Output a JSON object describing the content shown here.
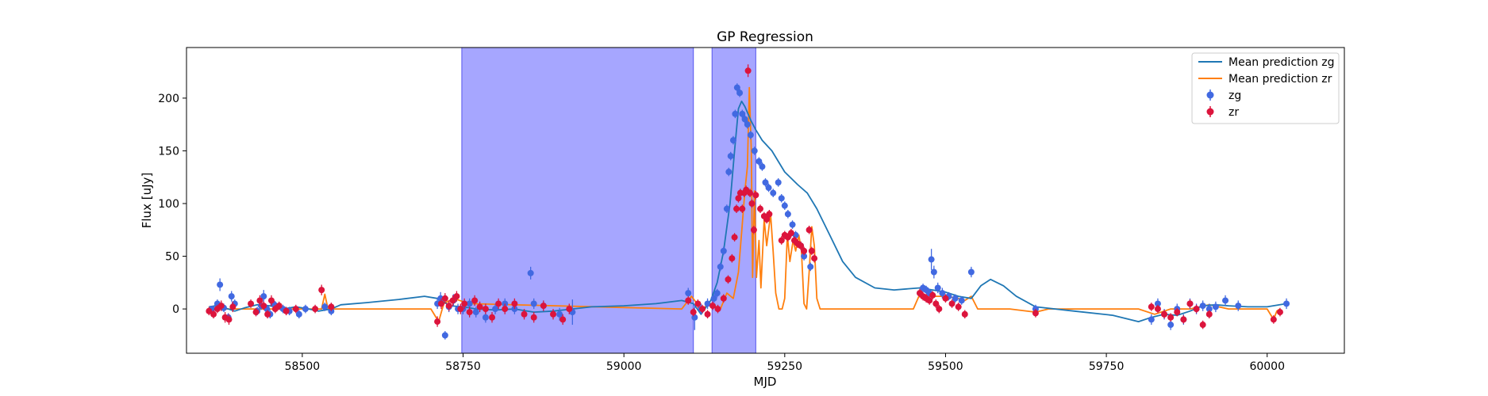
{
  "chart_data": {
    "type": "scatter",
    "title": "GP Regression",
    "xlabel": "MJD",
    "ylabel": "Flux [uJy]",
    "xlim": [
      58320,
      60120
    ],
    "ylim": [
      -42,
      248
    ],
    "xticks": [
      58500,
      58750,
      59000,
      59250,
      59500,
      59750,
      60000
    ],
    "yticks": [
      0,
      50,
      100,
      150,
      200
    ],
    "grid": false,
    "legend_position": "top-right",
    "shaded_spans": [
      {
        "x0": 58748,
        "x1": 59108,
        "color": "#a6a6ff"
      },
      {
        "x0": 59137,
        "x1": 59205,
        "color": "#a6a6ff"
      }
    ],
    "lines": [
      {
        "name": "Mean prediction zg",
        "color": "#1f77b4",
        "x": [
          58355,
          58365,
          58380,
          58395,
          58410,
          58430,
          58450,
          58470,
          58490,
          58510,
          58525,
          58545,
          58560,
          58600,
          58650,
          58690,
          58710,
          58730,
          58750,
          58770,
          58800,
          58830,
          58860,
          58890,
          58920,
          58950,
          59000,
          59050,
          59090,
          59108,
          59120,
          59135,
          59145,
          59155,
          59165,
          59172,
          59178,
          59183,
          59188,
          59193,
          59198,
          59205,
          59215,
          59230,
          59250,
          59270,
          59285,
          59300,
          59320,
          59340,
          59360,
          59390,
          59420,
          59460,
          59480,
          59500,
          59520,
          59540,
          59555,
          59570,
          59590,
          59610,
          59640,
          59700,
          59760,
          59800,
          59820,
          59840,
          59860,
          59880,
          59900,
          59920,
          59940,
          59970,
          60000,
          60030
        ],
        "y": [
          2,
          3,
          1,
          -2,
          1,
          4,
          3,
          0,
          2,
          0,
          -2,
          0,
          4,
          6,
          9,
          12,
          10,
          3,
          2,
          0,
          -1,
          0,
          -3,
          -2,
          0,
          2,
          3,
          5,
          8,
          5,
          -5,
          8,
          25,
          55,
          100,
          150,
          190,
          197,
          192,
          185,
          178,
          170,
          160,
          150,
          130,
          118,
          110,
          95,
          70,
          45,
          30,
          20,
          18,
          20,
          18,
          16,
          12,
          10,
          22,
          28,
          22,
          12,
          2,
          -2,
          -6,
          -12,
          -8,
          -5,
          -6,
          -2,
          3,
          4,
          3,
          2,
          2,
          5
        ]
      },
      {
        "name": "Mean prediction zr",
        "color": "#ff7f0e",
        "x": [
          58355,
          58380,
          58500,
          58530,
          58535,
          58540,
          58560,
          58700,
          58712,
          58720,
          58735,
          58760,
          59090,
          59105,
          59120,
          59135,
          59150,
          59160,
          59170,
          59178,
          59184,
          59188,
          59192,
          59195,
          59198,
          59200,
          59203,
          59206,
          59210,
          59213,
          59218,
          59222,
          59228,
          59232,
          59236,
          59241,
          59246,
          59250,
          59254,
          59258,
          59263,
          59267,
          59272,
          59276,
          59280,
          59284,
          59288,
          59292,
          59296,
          59300,
          59305,
          59310,
          59450,
          59460,
          59470,
          59480,
          59490,
          59500,
          59510,
          59520,
          59530,
          59540,
          59550,
          59600,
          59640,
          59660,
          59800,
          59825,
          59850,
          59880,
          59910,
          59940,
          60000,
          60010,
          60015,
          60020
        ],
        "y": [
          0,
          0,
          0,
          0,
          14,
          0,
          0,
          0,
          -12,
          5,
          10,
          5,
          0,
          12,
          0,
          5,
          0,
          15,
          10,
          35,
          80,
          112,
          135,
          210,
          150,
          30,
          112,
          30,
          65,
          20,
          85,
          60,
          90,
          55,
          15,
          0,
          0,
          10,
          70,
          45,
          65,
          55,
          70,
          55,
          5,
          0,
          35,
          78,
          60,
          10,
          0,
          0,
          0,
          14,
          13,
          12,
          12,
          12,
          11,
          10,
          8,
          12,
          0,
          0,
          -3,
          0,
          0,
          -5,
          0,
          0,
          4,
          0,
          0,
          -10,
          -2,
          0
        ]
      }
    ],
    "series": [
      {
        "name": "zg",
        "color": "#4169e1",
        "x": [
          58360,
          58368,
          58372,
          58378,
          58385,
          58390,
          58395,
          58430,
          58436,
          58440,
          58445,
          58450,
          58455,
          58460,
          58470,
          58480,
          58495,
          58505,
          58535,
          58545,
          58710,
          58715,
          58722,
          58728,
          58735,
          58742,
          58750,
          58760,
          58770,
          58785,
          58800,
          58815,
          58830,
          58855,
          58860,
          58875,
          58900,
          58920,
          59100,
          59110,
          59120,
          59130,
          59140,
          59145,
          59150,
          59155,
          59160,
          59163,
          59166,
          59170,
          59173,
          59176,
          59180,
          59184,
          59188,
          59192,
          59197,
          59203,
          59210,
          59215,
          59220,
          59225,
          59232,
          59240,
          59245,
          59250,
          59255,
          59262,
          59267,
          59275,
          59280,
          59290,
          59460,
          59465,
          59470,
          59475,
          59478,
          59482,
          59488,
          59495,
          59505,
          59515,
          59525,
          59540,
          59640,
          59820,
          59830,
          59840,
          59850,
          59860,
          59870,
          59880,
          59890,
          59900,
          59910,
          59920,
          59935,
          59955,
          60030
        ],
        "y": [
          0,
          5,
          23,
          1,
          -8,
          12,
          5,
          -2,
          3,
          12,
          0,
          -5,
          5,
          2,
          0,
          -2,
          -5,
          0,
          2,
          -2,
          5,
          10,
          -25,
          2,
          8,
          0,
          0,
          5,
          -3,
          -8,
          0,
          5,
          0,
          34,
          5,
          3,
          -5,
          -3,
          15,
          -8,
          0,
          5,
          10,
          15,
          40,
          55,
          95,
          130,
          145,
          160,
          185,
          210,
          205,
          185,
          180,
          175,
          165,
          150,
          140,
          135,
          120,
          115,
          110,
          120,
          105,
          98,
          90,
          80,
          70,
          60,
          50,
          40,
          15,
          20,
          18,
          15,
          47,
          35,
          20,
          15,
          12,
          10,
          8,
          35,
          0,
          -10,
          5,
          -5,
          -15,
          0,
          -10,
          5,
          0,
          3,
          0,
          2,
          8,
          3,
          5
        ],
        "err": [
          3,
          4,
          6,
          4,
          4,
          5,
          4,
          4,
          4,
          6,
          4,
          4,
          5,
          4,
          4,
          4,
          4,
          4,
          4,
          4,
          5,
          6,
          4,
          5,
          6,
          5,
          5,
          5,
          5,
          5,
          5,
          5,
          5,
          6,
          5,
          5,
          6,
          12,
          5,
          12,
          5,
          5,
          4,
          4,
          4,
          4,
          4,
          4,
          4,
          4,
          4,
          4,
          4,
          4,
          4,
          4,
          4,
          4,
          4,
          4,
          4,
          4,
          4,
          4,
          4,
          4,
          4,
          4,
          4,
          4,
          4,
          4,
          4,
          4,
          4,
          4,
          10,
          6,
          5,
          5,
          4,
          4,
          4,
          5,
          4,
          5,
          5,
          5,
          5,
          5,
          5,
          5,
          5,
          5,
          5,
          5,
          5,
          5,
          5
        ]
      },
      {
        "name": "zr",
        "color": "#dc143c",
        "x": [
          58355,
          58362,
          58368,
          58374,
          58380,
          58386,
          58392,
          58420,
          58428,
          58434,
          58440,
          58446,
          58452,
          58458,
          58464,
          58475,
          58490,
          58520,
          58530,
          58545,
          58710,
          58716,
          58722,
          58728,
          58734,
          58740,
          58746,
          58752,
          58760,
          58768,
          58776,
          58785,
          58795,
          58805,
          58815,
          58830,
          58845,
          58860,
          58875,
          58890,
          58905,
          58915,
          59100,
          59108,
          59115,
          59122,
          59130,
          59138,
          59146,
          59155,
          59162,
          59168,
          59172,
          59175,
          59178,
          59181,
          59184,
          59187,
          59190,
          59193,
          59196,
          59199,
          59202,
          59205,
          59212,
          59218,
          59222,
          59226,
          59245,
          59250,
          59255,
          59260,
          59265,
          59270,
          59275,
          59280,
          59288,
          59292,
          59296,
          59460,
          59465,
          59470,
          59475,
          59480,
          59485,
          59490,
          59500,
          59510,
          59520,
          59530,
          59640,
          59820,
          59830,
          59840,
          59850,
          59860,
          59870,
          59880,
          59890,
          59900,
          59910,
          60010,
          60020
        ],
        "y": [
          -2,
          -5,
          0,
          3,
          -8,
          -10,
          2,
          5,
          -3,
          8,
          3,
          -5,
          8,
          0,
          3,
          -2,
          0,
          0,
          18,
          2,
          -12,
          5,
          10,
          3,
          8,
          12,
          0,
          5,
          -3,
          8,
          2,
          0,
          -8,
          5,
          0,
          5,
          -5,
          -8,
          3,
          -5,
          -10,
          0,
          8,
          -3,
          5,
          0,
          -5,
          3,
          0,
          10,
          28,
          48,
          68,
          95,
          105,
          110,
          95,
          110,
          113,
          226,
          110,
          100,
          75,
          108,
          95,
          88,
          85,
          90,
          65,
          70,
          68,
          72,
          65,
          62,
          60,
          55,
          75,
          55,
          48,
          15,
          12,
          10,
          8,
          13,
          5,
          0,
          10,
          5,
          2,
          -5,
          -4,
          2,
          0,
          -5,
          -8,
          -3,
          -10,
          5,
          0,
          -15,
          -5,
          -10,
          -3
        ],
        "err": [
          4,
          4,
          4,
          5,
          5,
          5,
          5,
          4,
          4,
          5,
          4,
          4,
          5,
          4,
          4,
          4,
          4,
          4,
          5,
          4,
          5,
          5,
          5,
          5,
          5,
          5,
          5,
          5,
          5,
          5,
          5,
          5,
          5,
          5,
          5,
          5,
          5,
          5,
          5,
          5,
          5,
          5,
          4,
          4,
          4,
          4,
          4,
          4,
          4,
          4,
          4,
          4,
          4,
          4,
          4,
          4,
          4,
          4,
          4,
          6,
          4,
          4,
          4,
          4,
          4,
          4,
          4,
          4,
          4,
          4,
          4,
          4,
          4,
          4,
          4,
          4,
          4,
          4,
          4,
          4,
          4,
          4,
          4,
          4,
          4,
          4,
          4,
          4,
          4,
          4,
          4,
          4,
          4,
          4,
          4,
          4,
          4,
          4,
          4,
          4,
          4,
          4,
          4
        ]
      }
    ]
  }
}
